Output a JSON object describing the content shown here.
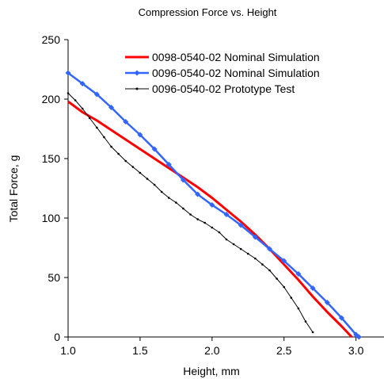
{
  "chart_data": {
    "type": "line",
    "title": "Compression Force vs. Height",
    "xlabel": "Height, mm",
    "ylabel": "Total Force, g",
    "xlim": [
      1.0,
      3.2
    ],
    "ylim": [
      0,
      250
    ],
    "xticks": [
      "1.0",
      "1.5",
      "2.0",
      "2.5",
      "3.0"
    ],
    "yticks": [
      "0",
      "50",
      "100",
      "150",
      "200",
      "250"
    ],
    "grid": false,
    "legend_position": "top-right",
    "series": [
      {
        "name": "0098-0540-02 Nominal Simulation",
        "color": "#ff0000",
        "marker": "none",
        "x": [
          1.0,
          1.1,
          1.2,
          1.3,
          1.4,
          1.5,
          1.6,
          1.7,
          1.8,
          1.9,
          2.0,
          2.1,
          2.2,
          2.3,
          2.4,
          2.5,
          2.6,
          2.7,
          2.8,
          2.9,
          2.97
        ],
        "y": [
          198,
          189,
          182,
          174,
          166,
          158,
          150,
          142,
          134,
          126,
          117,
          107,
          97,
          86,
          74,
          61,
          48,
          34,
          21,
          9,
          0
        ]
      },
      {
        "name": "0096-0540-02 Nominal Simulation",
        "color": "#3366ff",
        "marker": "diamond",
        "x": [
          1.0,
          1.1,
          1.2,
          1.3,
          1.4,
          1.5,
          1.6,
          1.7,
          1.8,
          1.9,
          2.0,
          2.1,
          2.2,
          2.3,
          2.4,
          2.5,
          2.6,
          2.7,
          2.8,
          2.9,
          3.0,
          3.02
        ],
        "y": [
          222,
          213,
          204,
          193,
          181,
          170,
          158,
          145,
          132,
          120,
          111,
          103,
          94,
          84,
          74,
          64,
          53,
          41,
          29,
          16,
          2,
          0
        ]
      },
      {
        "name": "0096-0540-02 Prototype Test",
        "color": "#000000",
        "marker": "small-dot",
        "x": [
          1.0,
          1.05,
          1.1,
          1.15,
          1.2,
          1.25,
          1.3,
          1.35,
          1.4,
          1.45,
          1.5,
          1.55,
          1.6,
          1.65,
          1.7,
          1.75,
          1.8,
          1.85,
          1.9,
          1.95,
          2.0,
          2.05,
          2.1,
          2.15,
          2.2,
          2.25,
          2.3,
          2.35,
          2.4,
          2.45,
          2.5,
          2.55,
          2.6,
          2.65,
          2.7
        ],
        "y": [
          205,
          199,
          192,
          184,
          176,
          168,
          160,
          154,
          148,
          143,
          138,
          133,
          128,
          122,
          117,
          113,
          108,
          103,
          99,
          96,
          92,
          88,
          82,
          78,
          74,
          70,
          66,
          61,
          56,
          49,
          42,
          33,
          24,
          13,
          4
        ]
      }
    ]
  }
}
